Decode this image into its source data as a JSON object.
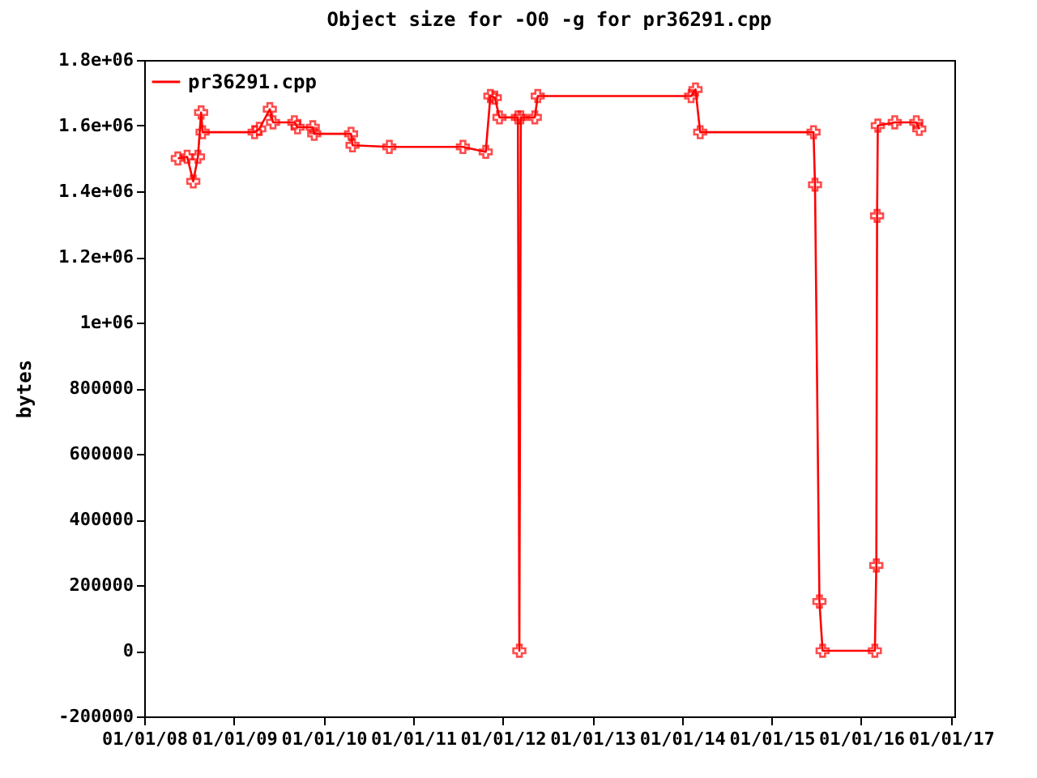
{
  "chart_data": {
    "type": "line",
    "title": "Object size for -O0 -g for pr36291.cpp",
    "ylabel": "bytes",
    "xlim": [
      "2008-01-01",
      "2017-01-15"
    ],
    "xticks": [
      {
        "value": "2008-01-01",
        "label": "01/01/08"
      },
      {
        "value": "2009-01-01",
        "label": "01/01/09"
      },
      {
        "value": "2010-01-01",
        "label": "01/01/10"
      },
      {
        "value": "2011-01-01",
        "label": "01/01/11"
      },
      {
        "value": "2012-01-01",
        "label": "01/01/12"
      },
      {
        "value": "2013-01-01",
        "label": "01/01/13"
      },
      {
        "value": "2014-01-01",
        "label": "01/01/14"
      },
      {
        "value": "2015-01-01",
        "label": "01/01/15"
      },
      {
        "value": "2016-01-01",
        "label": "01/01/16"
      },
      {
        "value": "2017-01-01",
        "label": "01/01/17"
      }
    ],
    "ylim": [
      -200000,
      1800000
    ],
    "yticks": [
      -200000,
      0,
      200000,
      400000,
      600000,
      800000,
      {
        "value": 1000000,
        "label": "1e+06"
      },
      {
        "value": 1200000,
        "label": "1.2e+06"
      },
      {
        "value": 1400000,
        "label": "1.4e+06"
      },
      {
        "value": 1600000,
        "label": "1.6e+06"
      },
      {
        "value": 1800000,
        "label": "1.8e+06"
      }
    ],
    "grid": false,
    "legend": "top left",
    "marker": "cross",
    "line_style": "solid",
    "series": [
      {
        "name": "pr36291.cpp",
        "color": "#ff0000",
        "x": [
          "2008-05-17",
          "2008-06-24",
          "2008-07-19",
          "2008-08-07",
          "2008-08-20",
          "2008-08-26",
          "2009-03-26",
          "2009-04-14",
          "2009-05-27",
          "2009-06-09",
          "2009-09-04",
          "2009-09-17",
          "2009-11-18",
          "2009-11-24",
          "2010-04-23",
          "2010-04-29",
          "2010-09-26",
          "2011-07-23",
          "2011-10-24",
          "2011-11-12",
          "2011-11-30",
          "2011-12-19",
          "2012-03-03",
          "2012-03-09",
          "2012-03-15",
          "2012-05-11",
          "2012-05-23",
          "2014-02-07",
          "2014-02-25",
          "2014-03-16",
          "2015-06-21",
          "2015-06-27",
          "2015-07-15",
          "2015-07-28",
          "2016-02-26",
          "2016-03-03",
          "2016-03-06",
          "2016-03-09",
          "2016-05-17",
          "2016-08-13",
          "2016-08-25"
        ],
        "values": [
          1500000,
          1505000,
          1430000,
          1505000,
          1640000,
          1580000,
          1580000,
          1590000,
          1650000,
          1610000,
          1610000,
          1595000,
          1595000,
          1575000,
          1575000,
          1540000,
          1535000,
          1535000,
          1520000,
          1690000,
          1685000,
          1625000,
          1625000,
          0,
          1625000,
          1625000,
          1690000,
          1690000,
          1710000,
          1580000,
          1580000,
          1420000,
          150000,
          0,
          0,
          260000,
          1325000,
          1600000,
          1610000,
          1610000,
          1590000
        ]
      }
    ]
  }
}
